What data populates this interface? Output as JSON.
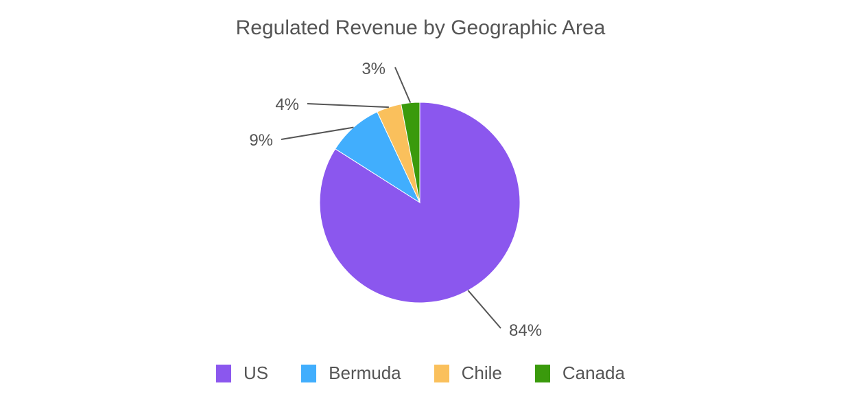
{
  "chart_data": {
    "type": "pie",
    "title": "Regulated Revenue by Geographic Area",
    "categories": [
      "US",
      "Bermuda",
      "Chile",
      "Canada"
    ],
    "values": [
      84,
      9,
      4,
      3
    ],
    "labels": [
      "84%",
      "9%",
      "4%",
      "3%"
    ],
    "colors": [
      "#8b57ee",
      "#41aefd",
      "#fac05c",
      "#3a9a0c"
    ],
    "legend_position": "bottom"
  },
  "title": "Regulated Revenue by Geographic Area",
  "legend": [
    {
      "label": "US",
      "color": "#8b57ee"
    },
    {
      "label": "Bermuda",
      "color": "#41aefd"
    },
    {
      "label": "Chile",
      "color": "#fac05c"
    },
    {
      "label": "Canada",
      "color": "#3a9a0c"
    }
  ]
}
